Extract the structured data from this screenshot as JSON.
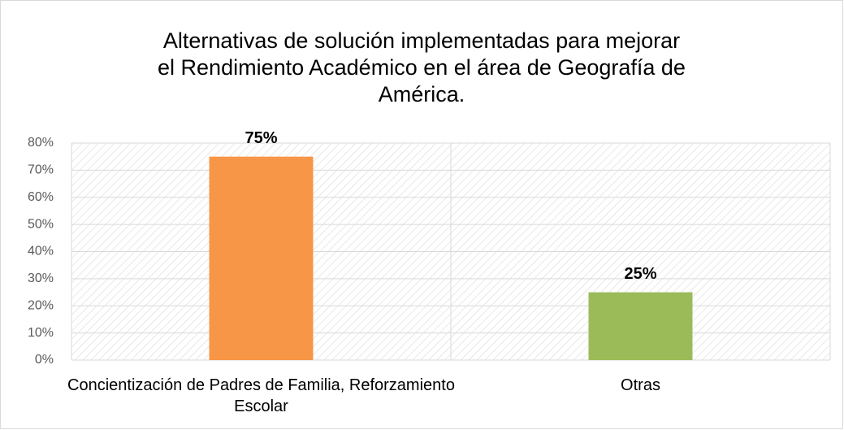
{
  "chart_data": {
    "type": "bar",
    "title": "Alternativas de solución implementadas para mejorar el Rendimiento Académico en el área de Geografía de América.",
    "categories": [
      "Concientización de Padres de Familia, Reforzamiento Escolar",
      "Otras"
    ],
    "values": [
      75,
      25
    ],
    "value_labels": [
      "75%",
      "25%"
    ],
    "colors": [
      "#f79646",
      "#9bbb59"
    ],
    "ylim": [
      0,
      80
    ],
    "yticks": [
      {
        "value": 0,
        "label": "0%"
      },
      {
        "value": 10,
        "label": "10%"
      },
      {
        "value": 20,
        "label": "20%"
      },
      {
        "value": 30,
        "label": "30%"
      },
      {
        "value": 40,
        "label": "40%"
      },
      {
        "value": 50,
        "label": "50%"
      },
      {
        "value": 60,
        "label": "60%"
      },
      {
        "value": 70,
        "label": "70%"
      },
      {
        "value": 80,
        "label": "80%"
      }
    ],
    "grid": true
  }
}
